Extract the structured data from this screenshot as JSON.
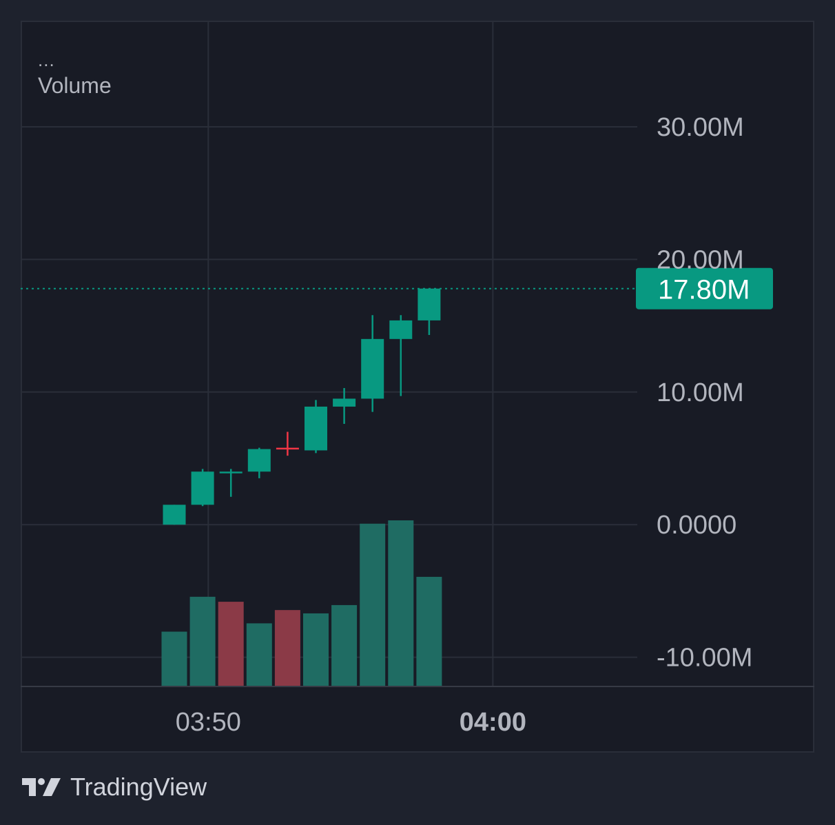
{
  "legend": {
    "menu": "...",
    "indicator": "Volume"
  },
  "brand": {
    "name": "TradingView"
  },
  "colors": {
    "up": "#089981",
    "down": "#f23645",
    "volume_up": "#1f6c63",
    "volume_down": "#8b3a47",
    "grid": "#2a2e39",
    "axis_text": "#b2b5be",
    "last_price_bg": "#089981"
  },
  "chart_data": {
    "type": "candlestick",
    "y_ticks": [
      {
        "value": 30000000,
        "label": "30.00M"
      },
      {
        "value": 20000000,
        "label": "20.00M"
      },
      {
        "value": 10000000,
        "label": "10.00M"
      },
      {
        "value": 0,
        "label": "0.0000"
      },
      {
        "value": -10000000,
        "label": "-10.00M"
      }
    ],
    "ylim": [
      -12200000,
      38000000
    ],
    "x_ticks": [
      {
        "index": 1.2,
        "label": "03:50",
        "bold": false
      },
      {
        "index": 11.25,
        "label": "04:00",
        "bold": true
      }
    ],
    "last_price": {
      "value": 17800000,
      "label": "17.80M"
    },
    "candles": [
      {
        "open": 0,
        "high": 1500000,
        "low": 0,
        "close": 1500000
      },
      {
        "open": 1500000,
        "high": 4200000,
        "low": 1400000,
        "close": 4000000
      },
      {
        "open": 4000000,
        "high": 4200000,
        "low": 2100000,
        "close": 4000000
      },
      {
        "open": 4000000,
        "high": 5800000,
        "low": 3500000,
        "close": 5700000
      },
      {
        "open": 5800000,
        "high": 7000000,
        "low": 5200000,
        "close": 5700000
      },
      {
        "open": 5600000,
        "high": 9400000,
        "low": 5400000,
        "close": 8900000
      },
      {
        "open": 8900000,
        "high": 10300000,
        "low": 7600000,
        "close": 9500000
      },
      {
        "open": 9500000,
        "high": 15800000,
        "low": 8500000,
        "close": 14000000
      },
      {
        "open": 14000000,
        "high": 15800000,
        "low": 9700000,
        "close": 15400000
      },
      {
        "open": 15400000,
        "high": 17800000,
        "low": 14300000,
        "close": 17800000
      }
    ],
    "volumes": [
      {
        "value": 0.33,
        "dir": "up"
      },
      {
        "value": 0.54,
        "dir": "up"
      },
      {
        "value": 0.51,
        "dir": "down"
      },
      {
        "value": 0.38,
        "dir": "up"
      },
      {
        "value": 0.46,
        "dir": "down"
      },
      {
        "value": 0.44,
        "dir": "up"
      },
      {
        "value": 0.49,
        "dir": "up"
      },
      {
        "value": 0.98,
        "dir": "up"
      },
      {
        "value": 1.0,
        "dir": "up"
      },
      {
        "value": 0.66,
        "dir": "up"
      }
    ]
  }
}
